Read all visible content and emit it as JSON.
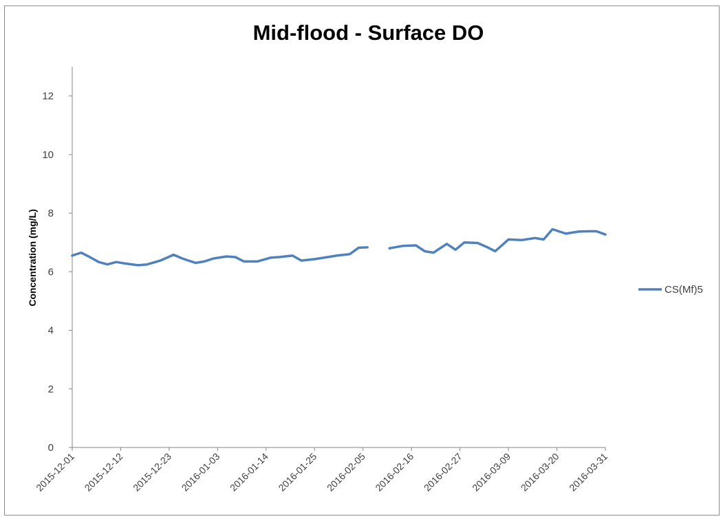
{
  "chart_data": {
    "type": "line",
    "title": "Mid-flood - Surface DO",
    "xlabel": "",
    "ylabel": "Concentration (mg/L)",
    "ylim": [
      0,
      13
    ],
    "yticks": [
      0,
      2,
      4,
      6,
      8,
      10,
      12
    ],
    "xlim": [
      "2015-12-01",
      "2016-03-31"
    ],
    "xticks": [
      "2015-12-01",
      "2015-12-12",
      "2015-12-23",
      "2016-01-03",
      "2016-01-14",
      "2016-01-25",
      "2016-02-05",
      "2016-02-16",
      "2016-02-27",
      "2016-03-09",
      "2016-03-20",
      "2016-03-31"
    ],
    "grid": false,
    "legend_position": "right",
    "line_color": "#4f81bd",
    "series": [
      {
        "name": "CS(Mf)5",
        "segments": [
          [
            [
              "2015-12-01",
              6.55
            ],
            [
              "2015-12-03",
              6.65
            ],
            [
              "2015-12-05",
              6.5
            ],
            [
              "2015-12-07",
              6.33
            ],
            [
              "2015-12-09",
              6.25
            ],
            [
              "2015-12-11",
              6.33
            ],
            [
              "2015-12-13",
              6.28
            ],
            [
              "2015-12-16",
              6.22
            ],
            [
              "2015-12-18",
              6.25
            ],
            [
              "2015-12-21",
              6.38
            ],
            [
              "2015-12-24",
              6.58
            ],
            [
              "2015-12-26",
              6.45
            ],
            [
              "2015-12-29",
              6.3
            ],
            [
              "2015-12-31",
              6.35
            ],
            [
              "2016-01-02",
              6.45
            ],
            [
              "2016-01-05",
              6.52
            ],
            [
              "2016-01-07",
              6.5
            ],
            [
              "2016-01-09",
              6.35
            ],
            [
              "2016-01-12",
              6.35
            ],
            [
              "2016-01-15",
              6.48
            ],
            [
              "2016-01-17",
              6.5
            ],
            [
              "2016-01-20",
              6.55
            ],
            [
              "2016-01-22",
              6.38
            ],
            [
              "2016-01-25",
              6.43
            ],
            [
              "2016-01-28",
              6.5
            ],
            [
              "2016-01-30",
              6.55
            ],
            [
              "2016-02-02",
              6.6
            ],
            [
              "2016-02-04",
              6.82
            ],
            [
              "2016-02-06",
              6.83
            ]
          ],
          [
            [
              "2016-02-11",
              6.8
            ],
            [
              "2016-02-14",
              6.88
            ],
            [
              "2016-02-17",
              6.9
            ],
            [
              "2016-02-19",
              6.7
            ],
            [
              "2016-02-21",
              6.65
            ],
            [
              "2016-02-24",
              6.95
            ],
            [
              "2016-02-26",
              6.75
            ],
            [
              "2016-02-28",
              7.0
            ],
            [
              "2016-03-02",
              6.98
            ],
            [
              "2016-03-04",
              6.85
            ],
            [
              "2016-03-06",
              6.7
            ],
            [
              "2016-03-09",
              7.1
            ],
            [
              "2016-03-12",
              7.08
            ],
            [
              "2016-03-15",
              7.15
            ],
            [
              "2016-03-17",
              7.1
            ],
            [
              "2016-03-19",
              7.45
            ],
            [
              "2016-03-22",
              7.3
            ],
            [
              "2016-03-25",
              7.37
            ],
            [
              "2016-03-27",
              7.38
            ],
            [
              "2016-03-29",
              7.38
            ],
            [
              "2016-03-31",
              7.27
            ]
          ]
        ]
      }
    ]
  }
}
